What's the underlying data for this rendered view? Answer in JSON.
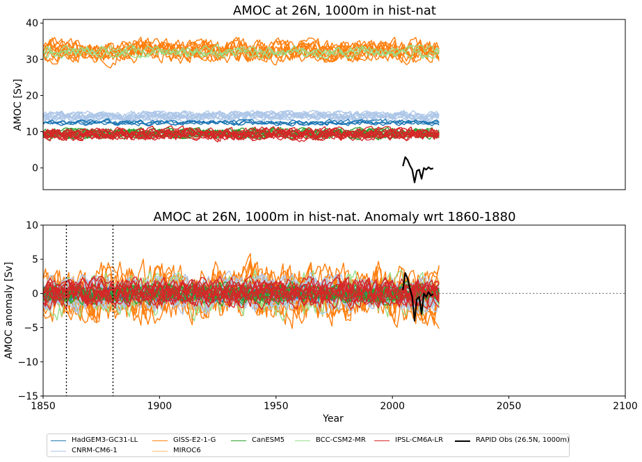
{
  "chart_data": [
    {
      "type": "line",
      "title": "AMOC at 26N, 1000m in hist-nat",
      "xlabel": "",
      "ylabel": "AMOC [Sv]",
      "xlim": [
        1850,
        2100
      ],
      "ylim": [
        -6,
        41
      ],
      "yticks": [
        "0",
        "10",
        "20",
        "30",
        "40"
      ],
      "grid": false,
      "series": [
        {
          "name": "GISS-E2-1-G",
          "color": "#ff7f0e",
          "members": 10,
          "x_range": [
            1850,
            2020
          ],
          "mean": 32.2,
          "spread": 4.5
        },
        {
          "name": "BCC-CSM2-MR",
          "color": "#98df8a",
          "members": 3,
          "x_range": [
            1850,
            2020
          ],
          "mean": 32.0,
          "spread": 2.5
        },
        {
          "name": "CNRM-CM6-1",
          "color": "#aec7e8",
          "members": 10,
          "x_range": [
            1850,
            2020
          ],
          "mean": 14.3,
          "spread": 2.0
        },
        {
          "name": "HadGEM3-GC31-LL",
          "color": "#1f77b4",
          "members": 4,
          "x_range": [
            1850,
            2020
          ],
          "mean": 12.5,
          "spread": 1.2
        },
        {
          "name": "CanESM5",
          "color": "#2ca02c",
          "members": 10,
          "x_range": [
            1850,
            2020
          ],
          "mean": 9.5,
          "spread": 2.0
        },
        {
          "name": "IPSL-CM6A-LR",
          "color": "#d62728",
          "members": 10,
          "x_range": [
            1850,
            2020
          ],
          "mean": 9.3,
          "spread": 2.5
        },
        {
          "name": "RAPID Obs (26.5N, 1000m)",
          "color": "#000000",
          "x": [
            2004.5,
            2005.5,
            2006.5,
            2007.5,
            2008.5,
            2009.5,
            2010.5,
            2011.5,
            2012.5,
            2013.5,
            2014.5,
            2015.5,
            2016.5,
            2017.5
          ],
          "y": [
            0.5,
            3.0,
            2.2,
            0.7,
            -0.5,
            -4.0,
            -0.8,
            -0.5,
            -3.0,
            0.0,
            -0.5,
            0.2,
            -0.3,
            -0.1
          ]
        }
      ]
    },
    {
      "type": "line",
      "title": "AMOC at 26N, 1000m in hist-nat. Anomaly wrt 1860-1880",
      "xlabel": "Year",
      "ylabel": "AMOC anomaly [Sv]",
      "xlim": [
        1850,
        2100
      ],
      "ylim": [
        -15,
        10
      ],
      "xticks": [
        "1850",
        "1900",
        "1950",
        "2000",
        "2050",
        "2100"
      ],
      "yticks": [
        "−15",
        "−10",
        "−5",
        "0",
        "5",
        "10"
      ],
      "reference_lines": {
        "vertical": [
          1860,
          1880
        ],
        "horizontal": [
          0
        ]
      },
      "series": [
        {
          "name": "GISS-E2-1-G",
          "color": "#ff7f0e",
          "members": 10,
          "x_range": [
            1850,
            2020
          ],
          "mean": 0,
          "spread": 6.0
        },
        {
          "name": "BCC-CSM2-MR",
          "color": "#98df8a",
          "members": 3,
          "x_range": [
            1850,
            2020
          ],
          "mean": 0,
          "spread": 4.5
        },
        {
          "name": "CNRM-CM6-1",
          "color": "#aec7e8",
          "members": 10,
          "x_range": [
            1850,
            2020
          ],
          "mean": 0,
          "spread": 3.5
        },
        {
          "name": "HadGEM3-GC31-LL",
          "color": "#1f77b4",
          "members": 4,
          "x_range": [
            1850,
            2020
          ],
          "mean": 0,
          "spread": 1.5
        },
        {
          "name": "CanESM5",
          "color": "#2ca02c",
          "members": 10,
          "x_range": [
            1850,
            2020
          ],
          "mean": 0,
          "spread": 2.0
        },
        {
          "name": "IPSL-CM6A-LR",
          "color": "#d62728",
          "members": 10,
          "x_range": [
            1850,
            2020
          ],
          "mean": 0,
          "spread": 3.0
        },
        {
          "name": "RAPID Obs (26.5N, 1000m)",
          "color": "#000000",
          "x": [
            2004.5,
            2005.5,
            2006.5,
            2007.5,
            2008.5,
            2009.5,
            2010.5,
            2011.5,
            2012.5,
            2013.5,
            2014.5,
            2015.5,
            2016.5,
            2017.5
          ],
          "y": [
            0.5,
            3.0,
            2.2,
            0.7,
            -0.5,
            -4.0,
            -0.8,
            -0.5,
            -3.0,
            0.0,
            -0.5,
            0.2,
            -0.3,
            -0.1
          ]
        }
      ]
    }
  ],
  "legend": {
    "placement": "bottom",
    "entries": [
      {
        "label": "HadGEM3-GC31-LL",
        "color": "#1f77b4"
      },
      {
        "label": "CNRM-CM6-1",
        "color": "#aec7e8"
      },
      {
        "label": "GISS-E2-1-G",
        "color": "#ff7f0e"
      },
      {
        "label": "MIROC6",
        "color": "#ffbb78"
      },
      {
        "label": "CanESM5",
        "color": "#2ca02c"
      },
      {
        "label": "BCC-CSM2-MR",
        "color": "#98df8a"
      },
      {
        "label": "IPSL-CM6A-LR",
        "color": "#d62728"
      },
      {
        "label": "RAPID Obs (26.5N, 1000m)",
        "color": "#000000"
      }
    ]
  }
}
